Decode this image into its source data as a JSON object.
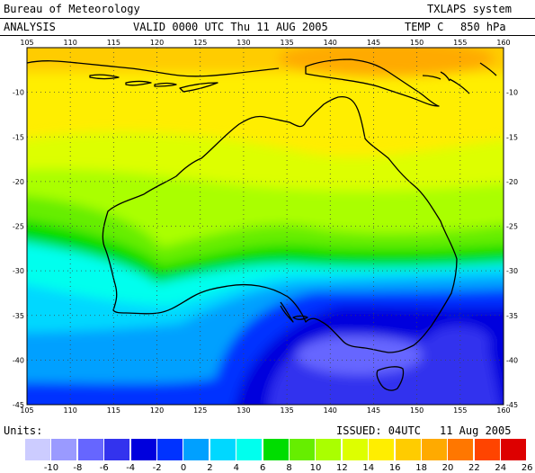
{
  "header": {
    "org": "Bureau of Meteorology",
    "system": "TXLAPS system",
    "analysis": "ANALYSIS",
    "valid": "VALID  0000 UTC  Thu 11 AUG 2005",
    "field": "TEMP C",
    "level": "850 hPa"
  },
  "map": {
    "lon_ticks": [
      "105",
      "110",
      "115",
      "120",
      "125",
      "130",
      "135",
      "140",
      "145",
      "150",
      "155",
      "160"
    ],
    "lat_ticks": [
      "-10",
      "-15",
      "-20",
      "-25",
      "-30",
      "-35",
      "-40",
      "-45"
    ],
    "lon_range": [
      105,
      160
    ],
    "lat_range": [
      -45,
      -5
    ],
    "gridlines": "dotted",
    "projection": "equirectangular"
  },
  "footer": {
    "units": "Units:",
    "issued": "ISSUED: 04UTC",
    "date": "11 Aug 2005"
  },
  "legend": {
    "colors": [
      "#ccccff",
      "#9a9aff",
      "#6666ff",
      "#3333ee",
      "#0000dd",
      "#0033ff",
      "#00a0ff",
      "#00d8ff",
      "#00ffee",
      "#00dd00",
      "#66ee00",
      "#aaff00",
      "#ddff00",
      "#ffee00",
      "#ffcc00",
      "#ffaa00",
      "#ff7700",
      "#ff4400",
      "#dd0000"
    ],
    "labels": [
      "-10",
      "-8",
      "-6",
      "-4",
      "-2",
      "0",
      "2",
      "4",
      "6",
      "8",
      "10",
      "12",
      "14",
      "16",
      "18",
      "20",
      "22",
      "24",
      "26"
    ]
  }
}
